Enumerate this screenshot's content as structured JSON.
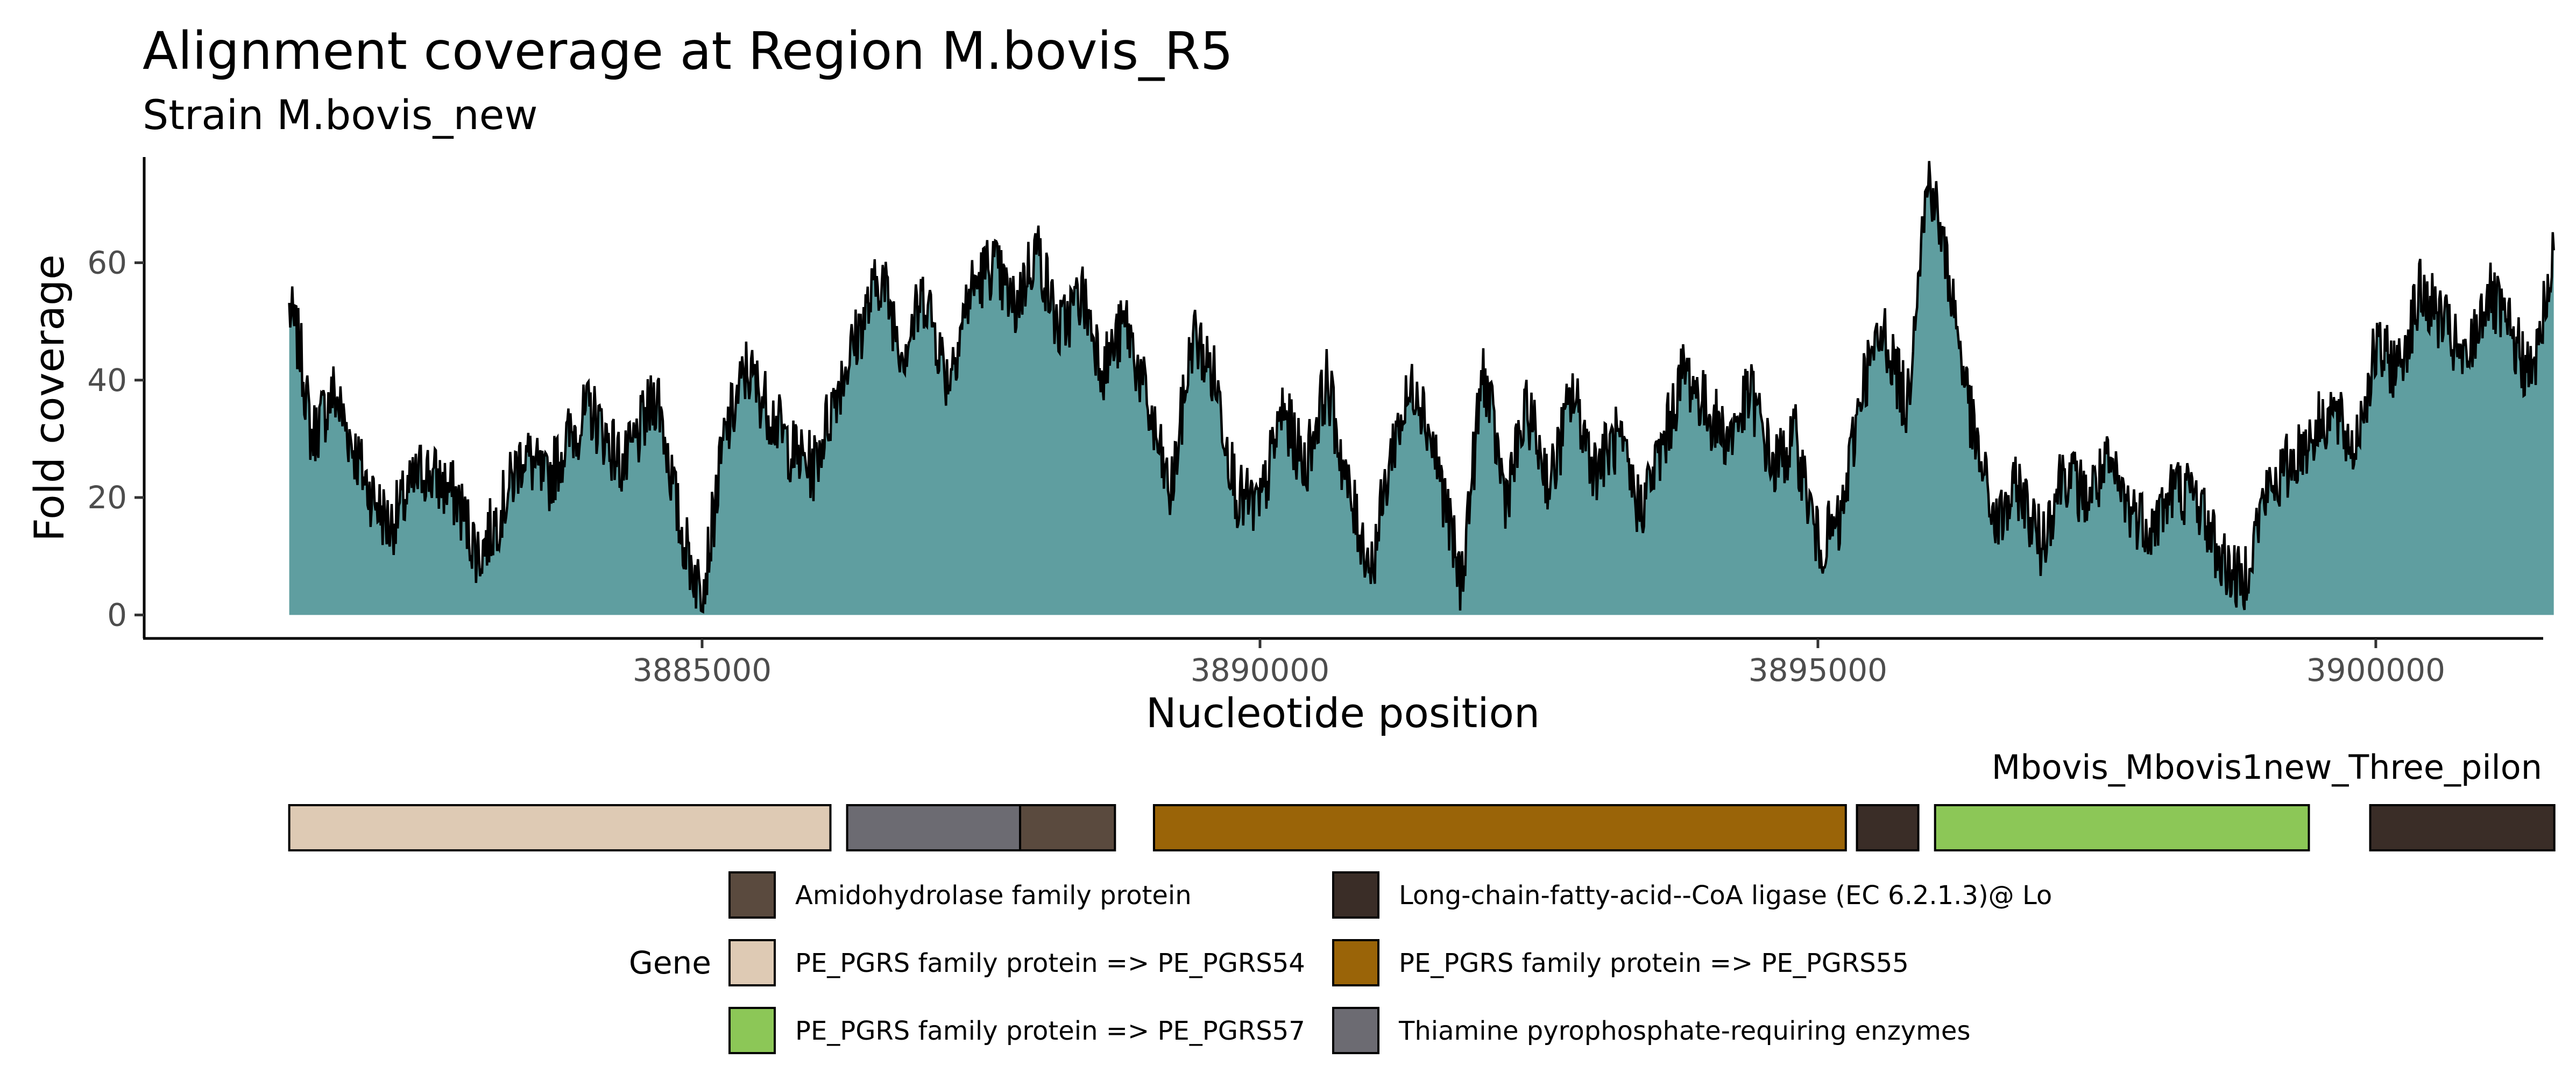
{
  "chart_data": {
    "type": "area",
    "title": "Alignment coverage at Region M.bovis_R5",
    "subtitle": "Strain M.bovis_new",
    "xlabel": "Nucleotide position",
    "ylabel": "Fold coverage",
    "xlim": [
      3880000,
      3901500
    ],
    "ylim": [
      -4,
      78
    ],
    "x_ticks": [
      3885000,
      3890000,
      3895000,
      3900000
    ],
    "x_tick_labels": [
      "3885000",
      "3890000",
      "3895000",
      "3900000"
    ],
    "y_ticks": [
      0,
      20,
      40,
      60
    ],
    "y_tick_labels": [
      "0",
      "20",
      "40",
      "60"
    ],
    "fill_color": "#5f9ea0",
    "line_color": "#000000",
    "coverage": {
      "x": [
        3881300,
        3881400,
        3881500,
        3881700,
        3882000,
        3882200,
        3882500,
        3882800,
        3883000,
        3883200,
        3883400,
        3883600,
        3883800,
        3884000,
        3884300,
        3884600,
        3884800,
        3885000,
        3885200,
        3885400,
        3885600,
        3885800,
        3886000,
        3886200,
        3886400,
        3886600,
        3886800,
        3887000,
        3887200,
        3887400,
        3887600,
        3887800,
        3888000,
        3888200,
        3888400,
        3888600,
        3888800,
        3889000,
        3889200,
        3889400,
        3889600,
        3889800,
        3890000,
        3890200,
        3890400,
        3890600,
        3890800,
        3891000,
        3891200,
        3891400,
        3891600,
        3891800,
        3892000,
        3892200,
        3892400,
        3892600,
        3892800,
        3893000,
        3893200,
        3893400,
        3893600,
        3893800,
        3894000,
        3894200,
        3894400,
        3894600,
        3894800,
        3895000,
        3895200,
        3895400,
        3895600,
        3895800,
        3895900,
        3896000,
        3896200,
        3896400,
        3896600,
        3896800,
        3897000,
        3897200,
        3897400,
        3897600,
        3897800,
        3898000,
        3898200,
        3898400,
        3898600,
        3898800,
        3899000,
        3899200,
        3899400,
        3899600,
        3899800,
        3900000,
        3900200,
        3900400,
        3900600,
        3900800,
        3901000,
        3901200,
        3901400,
        3901600
      ],
      "y": [
        52,
        45,
        30,
        38,
        22,
        15,
        25,
        20,
        10,
        18,
        28,
        22,
        30,
        35,
        25,
        38,
        15,
        3,
        30,
        42,
        35,
        28,
        25,
        38,
        48,
        58,
        45,
        55,
        40,
        55,
        60,
        52,
        63,
        48,
        55,
        42,
        50,
        35,
        20,
        48,
        40,
        20,
        18,
        35,
        25,
        40,
        20,
        8,
        30,
        40,
        25,
        5,
        42,
        20,
        35,
        22,
        38,
        25,
        30,
        18,
        28,
        42,
        35,
        30,
        38,
        25,
        30,
        12,
        15,
        40,
        48,
        35,
        60,
        75,
        55,
        30,
        15,
        22,
        12,
        25,
        20,
        25,
        18,
        15,
        22,
        20,
        10,
        5,
        20,
        25,
        30,
        35,
        28,
        45,
        42,
        55,
        50,
        42,
        55,
        48,
        40,
        62
      ]
    }
  },
  "gene_track": {
    "label": "Mbovis_Mbovis1new_Three_pilon",
    "genes": [
      {
        "start": 3881300,
        "end": 3886150,
        "color": "#decab4"
      },
      {
        "start": 3886300,
        "end": 3887850,
        "color": "#6c6b72"
      },
      {
        "start": 3887850,
        "end": 3888700,
        "color": "#5a4a3e"
      },
      {
        "start": 3889050,
        "end": 3895250,
        "color": "#9a6408"
      },
      {
        "start": 3895350,
        "end": 3895900,
        "color": "#3a2d27"
      },
      {
        "start": 3896050,
        "end": 3899400,
        "color": "#8cc757"
      },
      {
        "start": 3899950,
        "end": 3901600,
        "color": "#3a2d27"
      }
    ]
  },
  "legend": {
    "title": "Gene",
    "items": [
      {
        "label": "Amidohydrolase family protein",
        "color": "#5a4a3e"
      },
      {
        "label": "PE_PGRS family protein => PE_PGRS54",
        "color": "#decab4"
      },
      {
        "label": "PE_PGRS family protein => PE_PGRS57",
        "color": "#8cc757"
      },
      {
        "label": "Long-chain-fatty-acid--CoA ligase (EC 6.2.1.3)@ Lo",
        "color": "#3a2d27"
      },
      {
        "label": "PE_PGRS family protein => PE_PGRS55",
        "color": "#9a6408"
      },
      {
        "label": "Thiamine pyrophosphate-requiring enzymes",
        "color": "#6c6b72"
      }
    ]
  }
}
